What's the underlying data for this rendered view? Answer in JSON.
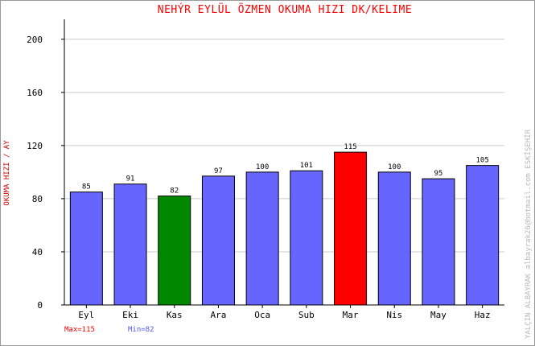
{
  "chart_data": {
    "type": "bar",
    "title": "NEHÝR EYLÜL ÖZMEN   OKUMA HIZI  DK/KELIME",
    "ylabel": "OKUMA HIZI / AY",
    "xlabel": "",
    "categories": [
      "Eyl",
      "Eki",
      "Kas",
      "Ara",
      "Oca",
      "Sub",
      "Mar",
      "Nis",
      "May",
      "Haz"
    ],
    "values": [
      85,
      91,
      82,
      97,
      100,
      101,
      115,
      100,
      95,
      105
    ],
    "ylim": [
      0,
      215
    ],
    "yticks": [
      0,
      40,
      80,
      120,
      160,
      200
    ],
    "grid": true,
    "max_label": "Max=115",
    "min_label": "Min=82",
    "credit": "YALÇIN ALBAYRAK  albayrak26@hotmail.com  ESKİŞEHİR",
    "colors": {
      "default": "#6666ff",
      "max": "#ff0000",
      "min": "#008800",
      "title": "#ff0000",
      "grid": "#cccccc",
      "frame": "#9a9a9a"
    }
  }
}
